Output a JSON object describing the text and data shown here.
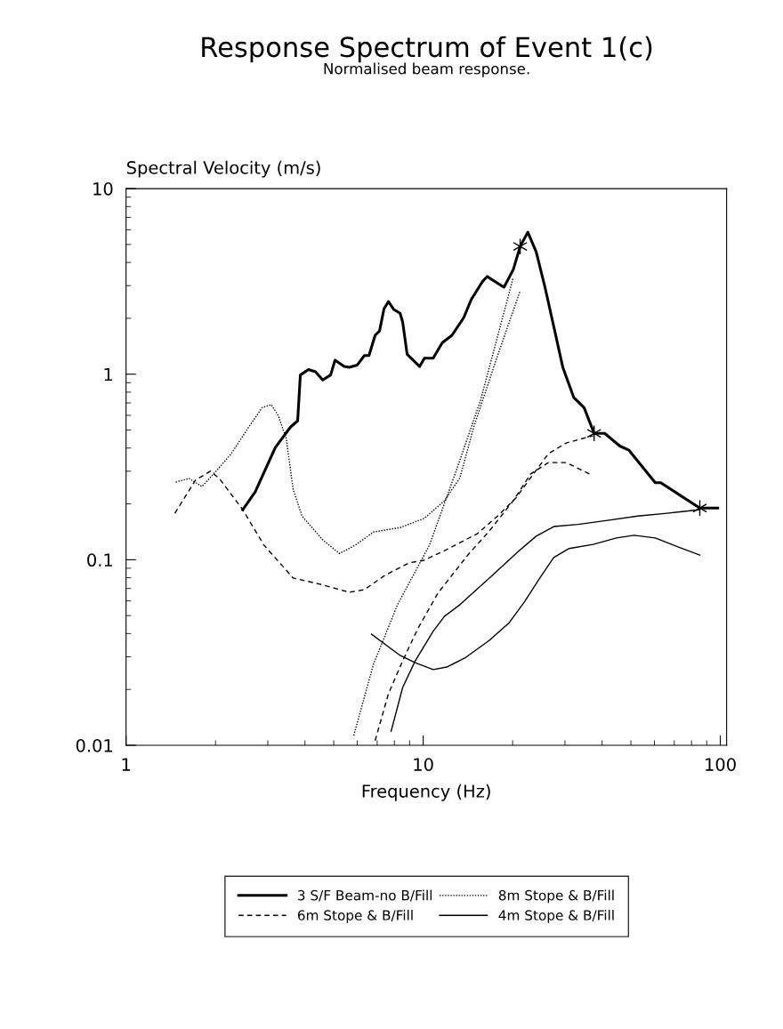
{
  "chart_data": {
    "type": "line",
    "title": "Response Spectrum of Event 1(c)",
    "subtitle": "Normalised beam response.",
    "xlabel": "Frequency (Hz)",
    "ylabel": "Spectral Velocity (m/s)",
    "log": "xy",
    "grid": false,
    "legend": "bottom",
    "marker": "none",
    "xlim": [
      1,
      105
    ],
    "ylim": [
      0.01,
      10
    ],
    "xticks": [
      1,
      10,
      100
    ],
    "yticks": [
      0.01,
      0.1,
      1,
      10
    ],
    "series": [
      {
        "name": "3 S/F Beam-no B/Fill",
        "color": "#000000",
        "line_style": "solid",
        "x": [
          2.47,
          2.72,
          3.18,
          3.58,
          3.78,
          3.86,
          4.11,
          4.34,
          4.59,
          4.88,
          5.05,
          5.42,
          5.64,
          6.0,
          6.34,
          6.57,
          6.89,
          7.13,
          7.38,
          7.64,
          7.97,
          8.36,
          8.53,
          8.83,
          9.73,
          10.1,
          10.8,
          11.6,
          12.5,
          13.7,
          14.5,
          15.8,
          16.4,
          18.7,
          20.1,
          21.2,
          22.5,
          24.0,
          25.7,
          27.5,
          29.5,
          32.1,
          34.8,
          37.6,
          40.8,
          45.9,
          49.2,
          60.4,
          63.0,
          85.3,
          98
        ],
        "values": [
          0.186,
          0.232,
          0.403,
          0.52,
          0.56,
          0.99,
          1.06,
          1.03,
          0.93,
          0.99,
          1.19,
          1.1,
          1.09,
          1.12,
          1.26,
          1.26,
          1.62,
          1.71,
          2.25,
          2.46,
          2.23,
          2.13,
          1.91,
          1.28,
          1.1,
          1.22,
          1.22,
          1.48,
          1.62,
          2.02,
          2.52,
          3.14,
          3.36,
          2.94,
          3.66,
          4.88,
          5.82,
          4.57,
          2.94,
          1.81,
          1.09,
          0.75,
          0.66,
          0.48,
          0.48,
          0.41,
          0.39,
          0.26,
          0.26,
          0.19,
          0.19
        ]
      },
      {
        "name": "8m Stope & B/Fill",
        "color": "#000000",
        "line_style": "dotted",
        "x": [
          1.47,
          1.63,
          1.8,
          2.01,
          2.26,
          2.59,
          2.87,
          3.08,
          3.25,
          3.46,
          3.65,
          3.91,
          4.59,
          5.23,
          5.92,
          6.8,
          8.36,
          10.07,
          11.8,
          13.3,
          14.8,
          17.8,
          21.2
        ],
        "values": [
          0.262,
          0.274,
          0.248,
          0.3,
          0.373,
          0.52,
          0.66,
          0.685,
          0.6,
          0.45,
          0.24,
          0.172,
          0.128,
          0.108,
          0.12,
          0.141,
          0.149,
          0.167,
          0.208,
          0.277,
          0.52,
          1.26,
          2.81
        ]
      },
      {
        "name": "6m Stope & B/Fill",
        "color": "#000000",
        "line_style": "dashed",
        "x": [
          1.46,
          1.71,
          1.92,
          2.06,
          2.47,
          2.91,
          3.65,
          4.5,
          5.64,
          6.34,
          7.43,
          8.96,
          10.07,
          12.0,
          15.2,
          17.8,
          20.5,
          23.5,
          26.4,
          30.3,
          37.3
        ],
        "values": [
          0.178,
          0.268,
          0.3,
          0.274,
          0.186,
          0.12,
          0.0797,
          0.0738,
          0.0668,
          0.069,
          0.0824,
          0.0962,
          0.0993,
          0.1135,
          0.138,
          0.172,
          0.215,
          0.29,
          0.373,
          0.426,
          0.466
        ]
      },
      {
        "name": "4m Stope & B/Fill",
        "color": "#000000",
        "line_style": "solid",
        "x": [
          6.7,
          8.36,
          9.4,
          10.8,
          12.0,
          13.8,
          16.7,
          19.5,
          21.9,
          24.7,
          27.5,
          31.0,
          37.3,
          44.7,
          51.3,
          60.4,
          72.3,
          85.3
        ],
        "values": [
          0.0397,
          0.0305,
          0.0279,
          0.0256,
          0.0264,
          0.0295,
          0.0368,
          0.0459,
          0.0592,
          0.0797,
          0.1028,
          0.115,
          0.121,
          0.131,
          0.1355,
          0.131,
          0.117,
          0.106
        ]
      },
      {
        "color": "#000000",
        "line_style": "dotted",
        "x": [
          5.84,
          6.8,
          8.19,
          10.5,
          12.9,
          15.6,
          20.1
        ],
        "values": [
          0.0113,
          0.0273,
          0.0571,
          0.12,
          0.3,
          0.724,
          3.32
        ]
      },
      {
        "color": "#000000",
        "line_style": "dashed",
        "x": [
          6.89,
          7.64,
          8.53,
          9.59,
          11.2,
          14.2,
          16.7,
          20.1,
          23.0,
          26.4,
          30.3,
          36.3
        ],
        "values": [
          0.0106,
          0.019,
          0.0285,
          0.0425,
          0.066,
          0.107,
          0.143,
          0.208,
          0.29,
          0.334,
          0.334,
          0.29
        ]
      },
      {
        "color": "#000000",
        "line_style": "solid",
        "x": [
          7.8,
          8.53,
          9.4,
          10.8,
          11.8,
          13.3,
          16.7,
          20.9,
          24.0,
          27.5,
          33.2,
          41.7,
          52.7,
          66.1,
          85.3
        ],
        "values": [
          0.0119,
          0.0205,
          0.0285,
          0.0411,
          0.0496,
          0.0573,
          0.0797,
          0.111,
          0.134,
          0.151,
          0.155,
          0.163,
          0.172,
          0.178,
          0.186
        ]
      },
      {
        "type": "scatter",
        "marker": "cross",
        "color": "#000000",
        "x": [
          21.2,
          37.6,
          85.3
        ],
        "values": [
          4.88,
          0.48,
          0.19
        ]
      }
    ]
  }
}
